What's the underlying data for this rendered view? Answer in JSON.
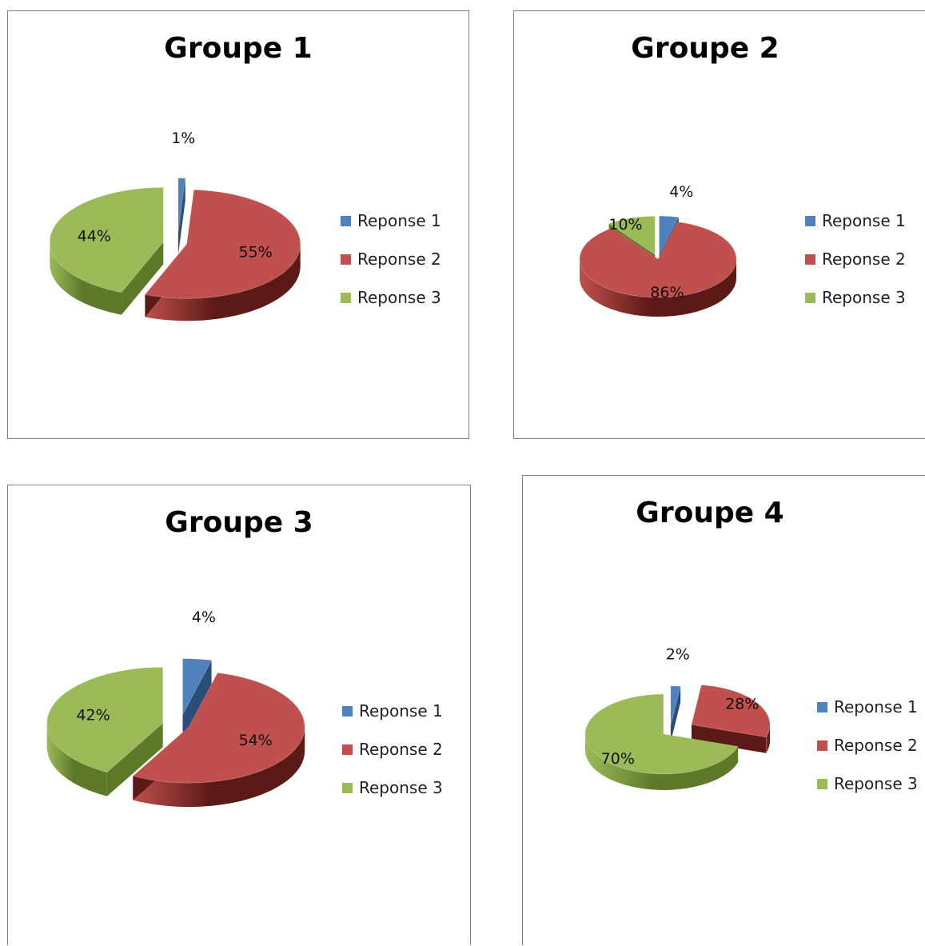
{
  "chart_data": [
    {
      "type": "pie",
      "title": "Groupe 1",
      "categories": [
        "Reponse 1",
        "Reponse 2",
        "Reponse 3"
      ],
      "values": [
        1,
        55,
        44
      ],
      "labels": [
        "1%",
        "55%",
        "44%"
      ],
      "legend": "right",
      "three_d": true
    },
    {
      "type": "pie",
      "title": "Groupe 2",
      "categories": [
        "Reponse 1",
        "Reponse 2",
        "Reponse 3"
      ],
      "values": [
        4,
        86,
        10
      ],
      "labels": [
        "4%",
        "86%",
        "10%"
      ],
      "legend": "right",
      "three_d": true
    },
    {
      "type": "pie",
      "title": "Groupe 3",
      "categories": [
        "Reponse 1",
        "Reponse 2",
        "Reponse 3"
      ],
      "values": [
        4,
        54,
        42
      ],
      "labels": [
        "4%",
        "54%",
        "42%"
      ],
      "legend": "right",
      "three_d": true
    },
    {
      "type": "pie",
      "title": "Groupe 4",
      "categories": [
        "Reponse 1",
        "Reponse 2",
        "Reponse 3"
      ],
      "values": [
        2,
        28,
        70
      ],
      "labels": [
        "2%",
        "28%",
        "70%"
      ],
      "legend": "right",
      "three_d": true
    }
  ],
  "colors": {
    "reponse_1": "#4F81BD",
    "reponse_2": "#C0504D",
    "reponse_3": "#9BBB59"
  }
}
